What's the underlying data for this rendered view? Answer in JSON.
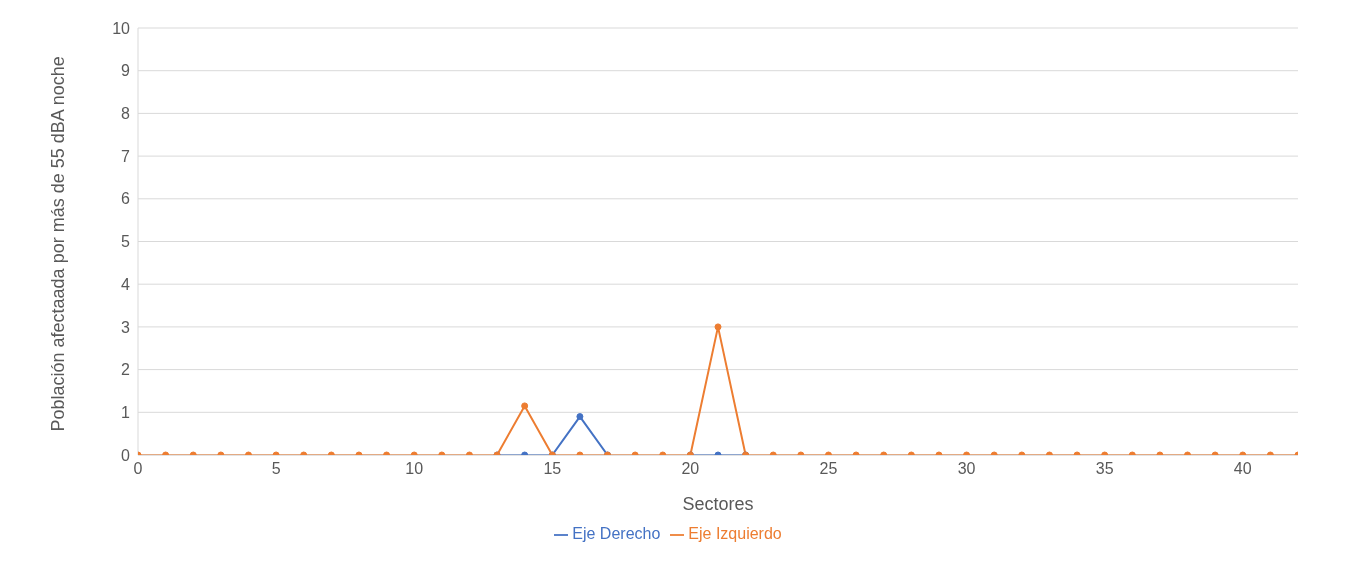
{
  "chart_data": {
    "type": "line",
    "xlabel": "Sectores",
    "ylabel": "Población afectaada por más de 55 dBA noche",
    "x": [
      0,
      1,
      2,
      3,
      4,
      5,
      6,
      7,
      8,
      9,
      10,
      11,
      12,
      13,
      14,
      15,
      16,
      17,
      18,
      19,
      20,
      21,
      22,
      23,
      24,
      25,
      26,
      27,
      28,
      29,
      30,
      31,
      32,
      33,
      34,
      35,
      36,
      37,
      38,
      39,
      40,
      41,
      42
    ],
    "series": [
      {
        "name": "Eje Derecho",
        "color": "#4472c4",
        "values": [
          null,
          null,
          null,
          null,
          null,
          null,
          null,
          null,
          null,
          null,
          null,
          null,
          null,
          0,
          0,
          0,
          0.9,
          0,
          null,
          null,
          0,
          0,
          0,
          null,
          null,
          null,
          null,
          null,
          null,
          null,
          null,
          null,
          null,
          null,
          null,
          null,
          null,
          null,
          null,
          null,
          null,
          null,
          null
        ]
      },
      {
        "name": "Eje Izquierdo",
        "color": "#ed7d31",
        "values": [
          0,
          0,
          0,
          0,
          0,
          0,
          0,
          0,
          0,
          0,
          0,
          0,
          0,
          0,
          1.15,
          0,
          0,
          0,
          0,
          0,
          0,
          3,
          0,
          0,
          0,
          0,
          0,
          0,
          0,
          0,
          0,
          0,
          0,
          0,
          0,
          0,
          0,
          0,
          0,
          0,
          0,
          0,
          0
        ]
      }
    ],
    "xlim": [
      0,
      42
    ],
    "xticks": [
      0,
      5,
      10,
      15,
      20,
      25,
      30,
      35,
      40
    ],
    "ylim": [
      0,
      10
    ],
    "yticks": [
      0,
      1,
      2,
      3,
      4,
      5,
      6,
      7,
      8,
      9,
      10
    ],
    "grid": "y",
    "legend": "bottom",
    "marker": "circle",
    "line_style": "solid"
  }
}
